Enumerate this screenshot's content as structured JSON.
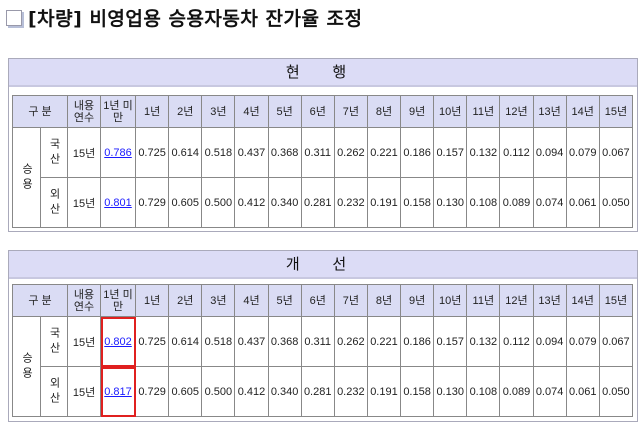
{
  "title": "[차량] 비영업용 승용자동차 잔가율 조정",
  "headers": {
    "gubun": "구 분",
    "life": "내용 연수",
    "under1": "1년 미만",
    "years": [
      "1년",
      "2년",
      "3년",
      "4년",
      "5년",
      "6년",
      "7년",
      "8년",
      "9년",
      "10년",
      "11년",
      "12년",
      "13년",
      "14년",
      "15년"
    ]
  },
  "category": "승용",
  "rows_labels": [
    "국산",
    "외산"
  ],
  "life_value": "15년",
  "current": {
    "label": "현 행",
    "rows": [
      {
        "under1": "0.786",
        "values": [
          "0.725",
          "0.614",
          "0.518",
          "0.437",
          "0.368",
          "0.311",
          "0.262",
          "0.221",
          "0.186",
          "0.157",
          "0.132",
          "0.112",
          "0.094",
          "0.079",
          "0.067"
        ]
      },
      {
        "under1": "0.801",
        "values": [
          "0.729",
          "0.605",
          "0.500",
          "0.412",
          "0.340",
          "0.281",
          "0.232",
          "0.191",
          "0.158",
          "0.130",
          "0.108",
          "0.089",
          "0.074",
          "0.061",
          "0.050"
        ]
      }
    ]
  },
  "improved": {
    "label": "개 선",
    "rows": [
      {
        "under1": "0.802",
        "values": [
          "0.725",
          "0.614",
          "0.518",
          "0.437",
          "0.368",
          "0.311",
          "0.262",
          "0.221",
          "0.186",
          "0.157",
          "0.132",
          "0.112",
          "0.094",
          "0.079",
          "0.067"
        ]
      },
      {
        "under1": "0.817",
        "values": [
          "0.729",
          "0.605",
          "0.500",
          "0.412",
          "0.340",
          "0.281",
          "0.232",
          "0.191",
          "0.158",
          "0.130",
          "0.108",
          "0.089",
          "0.074",
          "0.061",
          "0.050"
        ]
      }
    ]
  },
  "colors": {
    "highlight": "#e0201f",
    "link": "#1a1aff",
    "header_bg": "#dadcf4"
  }
}
